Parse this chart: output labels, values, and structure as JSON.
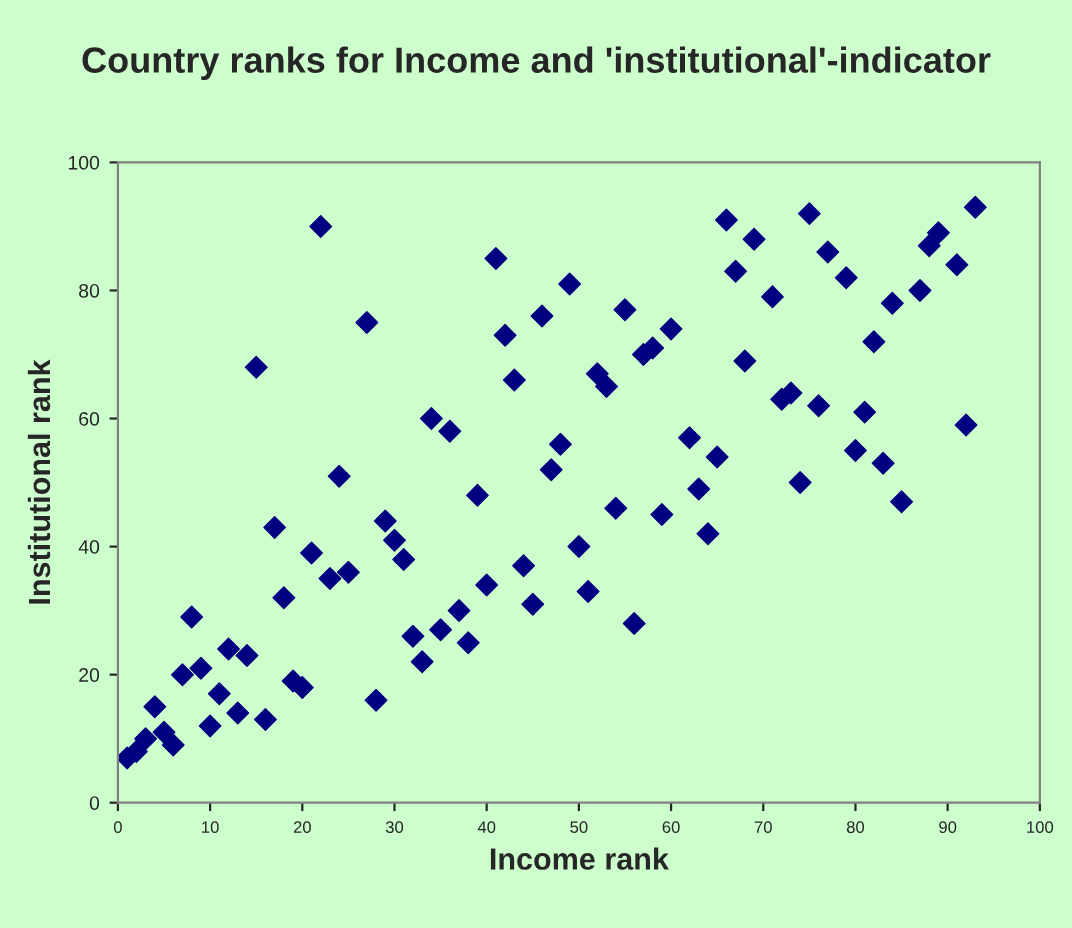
{
  "chart_data": {
    "type": "scatter",
    "title": "Country ranks for Income and 'institutional'-indicator",
    "xlabel": "Income rank",
    "ylabel": "Institutional rank",
    "x": [
      1,
      2,
      3,
      4,
      5,
      6,
      7,
      8,
      9,
      10,
      11,
      12,
      13,
      14,
      15,
      16,
      17,
      18,
      19,
      20,
      21,
      22,
      23,
      24,
      25,
      27,
      28,
      29,
      30,
      31,
      32,
      33,
      34,
      35,
      36,
      37,
      38,
      39,
      40,
      41,
      42,
      43,
      44,
      45,
      46,
      47,
      48,
      49,
      50,
      51,
      52,
      53,
      54,
      55,
      56,
      57,
      58,
      59,
      60,
      62,
      63,
      64,
      65,
      66,
      67,
      68,
      69,
      71,
      72,
      73,
      74,
      75,
      76,
      77,
      79,
      80,
      81,
      82,
      83,
      84,
      85,
      87,
      88,
      89,
      91,
      92,
      93
    ],
    "series": [
      {
        "color": "#000080",
        "values": [
          7,
          8,
          10,
          15,
          11,
          9,
          20,
          29,
          21,
          12,
          17,
          24,
          14,
          23,
          68,
          13,
          43,
          32,
          19,
          18,
          39,
          90,
          35,
          51,
          36,
          75,
          16,
          44,
          41,
          38,
          26,
          22,
          60,
          27,
          58,
          30,
          25,
          48,
          34,
          85,
          73,
          66,
          37,
          31,
          76,
          52,
          56,
          81,
          40,
          33,
          67,
          65,
          46,
          77,
          28,
          70,
          71,
          45,
          74,
          57,
          49,
          42,
          54,
          91,
          83,
          69,
          88,
          79,
          63,
          64,
          50,
          92,
          62,
          86,
          82,
          55,
          61,
          72,
          53,
          78,
          47,
          80,
          87,
          89,
          84,
          59,
          93
        ]
      }
    ],
    "marker": "diamond",
    "xlim": [
      0,
      100
    ],
    "ylim": [
      0,
      100
    ],
    "xticks": [
      0,
      10,
      20,
      30,
      40,
      50,
      60,
      70,
      80,
      90,
      100
    ],
    "yticks": [
      0,
      20,
      40,
      60,
      80,
      100
    ],
    "grid": false,
    "legend": false
  }
}
